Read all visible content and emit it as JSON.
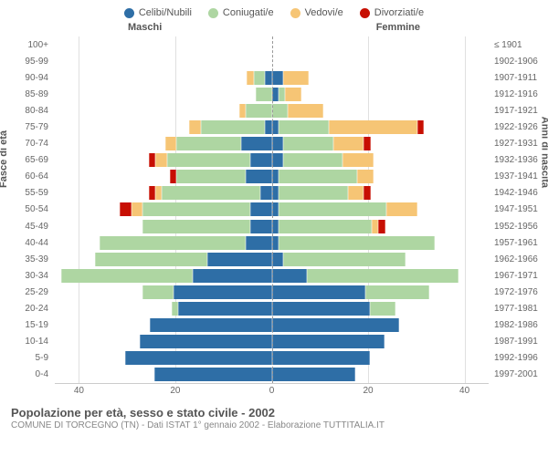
{
  "title": "Popolazione per età, sesso e stato civile - 2002",
  "subtitle": "COMUNE DI TORCEGNO (TN) - Dati ISTAT 1° gennaio 2002 - Elaborazione TUTTITALIA.IT",
  "legend": [
    {
      "label": "Celibi/Nubili",
      "color": "#2e6ea6"
    },
    {
      "label": "Coniugati/e",
      "color": "#aed6a2"
    },
    {
      "label": "Vedovi/e",
      "color": "#f6c575"
    },
    {
      "label": "Divorziati/e",
      "color": "#c70f02"
    }
  ],
  "side_labels": {
    "left": "Maschi",
    "right": "Femmine"
  },
  "y_axis_left": "Fasce di età",
  "y_axis_right": "Anni di nascita",
  "x_ticks": [
    40,
    20,
    0,
    20,
    40
  ],
  "x_max": 45,
  "colors": {
    "celibi": "#2e6ea6",
    "coniugati": "#aed6a2",
    "vedovi": "#f6c575",
    "divorziati": "#c70f02",
    "grid": "#e0e0e0",
    "center": "#999999",
    "bg": "#ffffff"
  },
  "rows": [
    {
      "age": "100+",
      "birth": "≤ 1901",
      "m": {
        "c": 0,
        "co": 0,
        "v": 0,
        "d": 0
      },
      "f": {
        "c": 0,
        "co": 0,
        "v": 0,
        "d": 0
      }
    },
    {
      "age": "95-99",
      "birth": "1902-1906",
      "m": {
        "c": 0,
        "co": 0,
        "v": 0,
        "d": 0
      },
      "f": {
        "c": 0,
        "co": 0,
        "v": 0,
        "d": 0
      }
    },
    {
      "age": "90-94",
      "birth": "1907-1911",
      "m": {
        "c": 1,
        "co": 2,
        "v": 1,
        "d": 0
      },
      "f": {
        "c": 2,
        "co": 0,
        "v": 5,
        "d": 0
      }
    },
    {
      "age": "85-89",
      "birth": "1912-1916",
      "m": {
        "c": 0,
        "co": 3,
        "v": 0,
        "d": 0
      },
      "f": {
        "c": 1,
        "co": 1,
        "v": 3,
        "d": 0
      }
    },
    {
      "age": "80-84",
      "birth": "1917-1921",
      "m": {
        "c": 0,
        "co": 5,
        "v": 1,
        "d": 0
      },
      "f": {
        "c": 0,
        "co": 3,
        "v": 7,
        "d": 0
      }
    },
    {
      "age": "75-79",
      "birth": "1922-1926",
      "m": {
        "c": 1,
        "co": 13,
        "v": 2,
        "d": 0
      },
      "f": {
        "c": 1,
        "co": 10,
        "v": 18,
        "d": 1
      }
    },
    {
      "age": "70-74",
      "birth": "1927-1931",
      "m": {
        "c": 6,
        "co": 13,
        "v": 2,
        "d": 0
      },
      "f": {
        "c": 2,
        "co": 10,
        "v": 6,
        "d": 1
      }
    },
    {
      "age": "65-69",
      "birth": "1932-1936",
      "m": {
        "c": 4,
        "co": 17,
        "v": 2,
        "d": 1
      },
      "f": {
        "c": 2,
        "co": 12,
        "v": 6,
        "d": 0
      }
    },
    {
      "age": "60-64",
      "birth": "1937-1941",
      "m": {
        "c": 5,
        "co": 14,
        "v": 0,
        "d": 1
      },
      "f": {
        "c": 1,
        "co": 16,
        "v": 3,
        "d": 0
      }
    },
    {
      "age": "55-59",
      "birth": "1942-1946",
      "m": {
        "c": 2,
        "co": 20,
        "v": 1,
        "d": 1
      },
      "f": {
        "c": 1,
        "co": 14,
        "v": 3,
        "d": 1
      }
    },
    {
      "age": "50-54",
      "birth": "1947-1951",
      "m": {
        "c": 4,
        "co": 22,
        "v": 2,
        "d": 2
      },
      "f": {
        "c": 1,
        "co": 22,
        "v": 6,
        "d": 0
      }
    },
    {
      "age": "45-49",
      "birth": "1952-1956",
      "m": {
        "c": 4,
        "co": 22,
        "v": 0,
        "d": 0
      },
      "f": {
        "c": 1,
        "co": 19,
        "v": 1,
        "d": 1
      }
    },
    {
      "age": "40-44",
      "birth": "1957-1961",
      "m": {
        "c": 5,
        "co": 30,
        "v": 0,
        "d": 0
      },
      "f": {
        "c": 1,
        "co": 32,
        "v": 0,
        "d": 0
      }
    },
    {
      "age": "35-39",
      "birth": "1962-1966",
      "m": {
        "c": 13,
        "co": 23,
        "v": 0,
        "d": 0
      },
      "f": {
        "c": 2,
        "co": 25,
        "v": 0,
        "d": 0
      }
    },
    {
      "age": "30-34",
      "birth": "1967-1971",
      "m": {
        "c": 16,
        "co": 27,
        "v": 0,
        "d": 0
      },
      "f": {
        "c": 7,
        "co": 31,
        "v": 0,
        "d": 0
      }
    },
    {
      "age": "25-29",
      "birth": "1972-1976",
      "m": {
        "c": 20,
        "co": 6,
        "v": 0,
        "d": 0
      },
      "f": {
        "c": 19,
        "co": 13,
        "v": 0,
        "d": 0
      }
    },
    {
      "age": "20-24",
      "birth": "1977-1981",
      "m": {
        "c": 19,
        "co": 1,
        "v": 0,
        "d": 0
      },
      "f": {
        "c": 20,
        "co": 5,
        "v": 0,
        "d": 0
      }
    },
    {
      "age": "15-19",
      "birth": "1982-1986",
      "m": {
        "c": 25,
        "co": 0,
        "v": 0,
        "d": 0
      },
      "f": {
        "c": 26,
        "co": 0,
        "v": 0,
        "d": 0
      }
    },
    {
      "age": "10-14",
      "birth": "1987-1991",
      "m": {
        "c": 27,
        "co": 0,
        "v": 0,
        "d": 0
      },
      "f": {
        "c": 23,
        "co": 0,
        "v": 0,
        "d": 0
      }
    },
    {
      "age": "5-9",
      "birth": "1992-1996",
      "m": {
        "c": 30,
        "co": 0,
        "v": 0,
        "d": 0
      },
      "f": {
        "c": 20,
        "co": 0,
        "v": 0,
        "d": 0
      }
    },
    {
      "age": "0-4",
      "birth": "1997-2001",
      "m": {
        "c": 24,
        "co": 0,
        "v": 0,
        "d": 0
      },
      "f": {
        "c": 17,
        "co": 0,
        "v": 0,
        "d": 0
      }
    }
  ]
}
